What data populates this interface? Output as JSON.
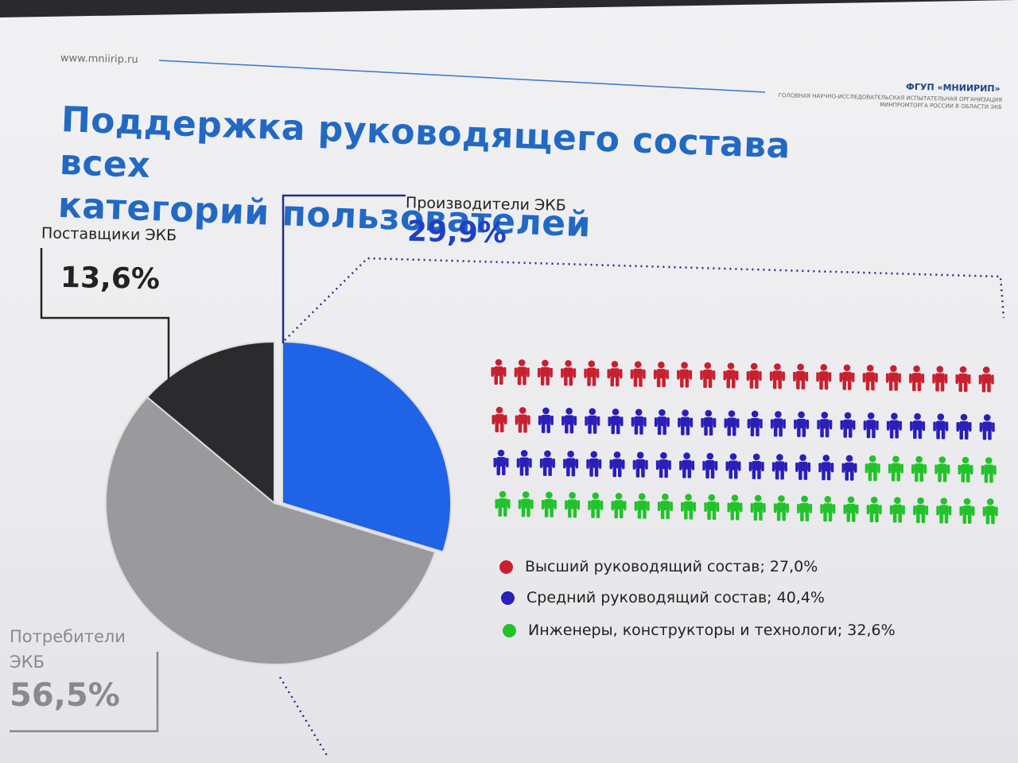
{
  "header": {
    "site_url": "www.mniirip.ru",
    "org_name": "ФГУП «МНИИРИП»",
    "org_desc_line1": "Головная научно-исследовательская испытательная организация",
    "org_desc_line2": "Минпромторга России в области ЭКБ"
  },
  "slide": {
    "title_line1": "Поддержка руководящего состава всех",
    "title_line2": "категорий пользователей"
  },
  "chart_data": [
    {
      "type": "pie",
      "slices": [
        {
          "label": "Производители ЭКБ",
          "value": 29.9,
          "value_text": "29,9%",
          "color": "#1f63e6"
        },
        {
          "label": "Потребители ЭКБ",
          "value": 56.5,
          "value_text": "56,5%",
          "color": "#9a9a9d"
        },
        {
          "label": "Поставщики ЭКБ",
          "value": 13.6,
          "value_text": "13,6%",
          "color": "#2b2b2e"
        }
      ]
    },
    {
      "type": "pictogram",
      "icon": "person-icon",
      "rows": 4,
      "per_row": 22,
      "series": [
        {
          "name": "Высший руководящий состав; 27,0%",
          "value": 27.0,
          "color": "#c8202f"
        },
        {
          "name": "Средний руководящий состав; 40,4%",
          "value": 40.4,
          "color": "#2a1fb8"
        },
        {
          "name": "Инженеры, конструкторы и технологи; 32,6%",
          "value": 32.6,
          "color": "#22c22a"
        }
      ]
    }
  ],
  "callouts": {
    "producers_label": "Производители ЭКБ",
    "producers_value": "29,9%",
    "suppliers_label": "Поставщики ЭКБ",
    "suppliers_value": "13,6%",
    "consumers_label_line1": "Потребители",
    "consumers_label_line2": "ЭКБ",
    "consumers_value": "56,5%"
  },
  "colors": {
    "title": "#2269c4",
    "accent_blue": "#1f63e6",
    "leader_dark_blue": "#1d2f8f"
  }
}
